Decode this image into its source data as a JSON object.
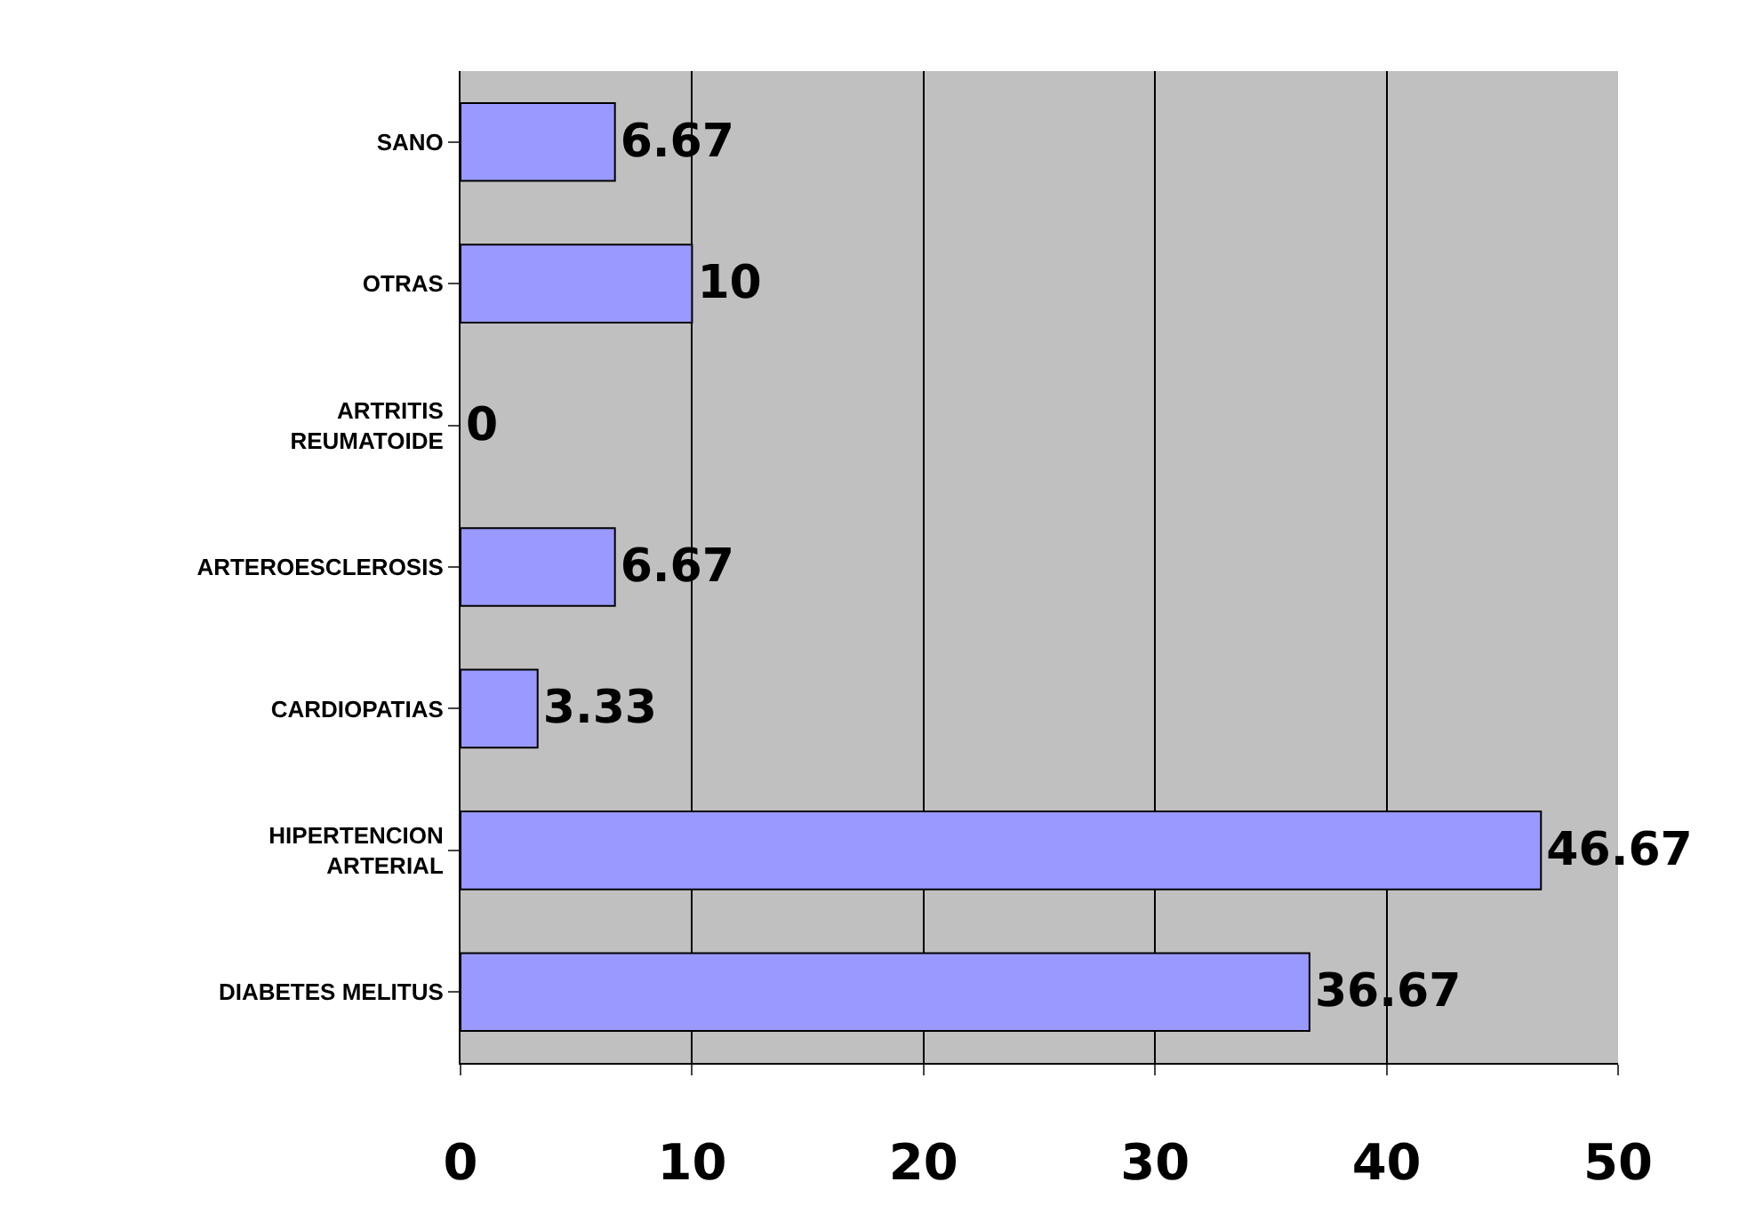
{
  "chart_data": {
    "type": "bar",
    "orientation": "horizontal",
    "categories": [
      "SANO",
      "OTRAS",
      "ARTRITIS\nREUMATOIDE",
      "ARTEROESCLEROSIS",
      "CARDIOPATIAS",
      "HIPERTENCION\nARTERIAL",
      "DIABETES MELITUS"
    ],
    "values": [
      6.67,
      10,
      0,
      6.67,
      3.33,
      46.67,
      36.67
    ],
    "color": "#9999ff",
    "xlim": [
      0,
      50
    ],
    "xticks": [
      0,
      10,
      20,
      30,
      40,
      50
    ],
    "grid": "x",
    "data_labels": true
  }
}
